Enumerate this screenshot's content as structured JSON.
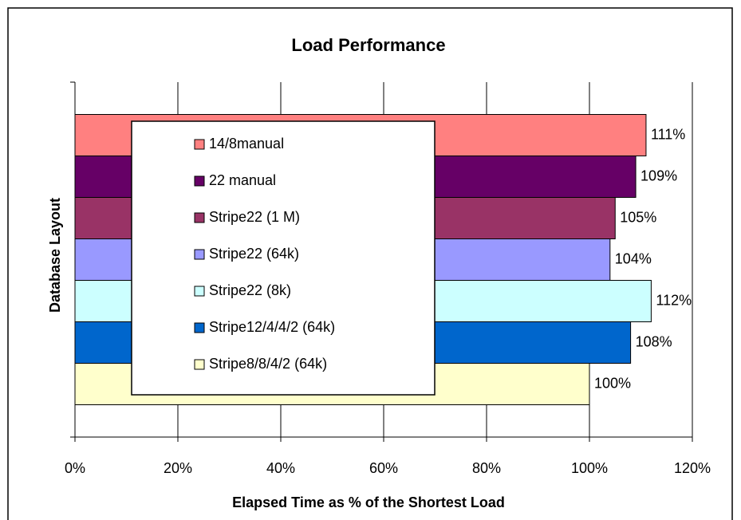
{
  "chart_data": {
    "type": "barh",
    "title": "Load Performance",
    "x_label": "Elapsed Time as % of the Shortest  Load",
    "y_label": "Database Layout",
    "categories": [
      null
    ],
    "series": [
      {
        "name": "14/8manual",
        "color": "#ff8080",
        "values": [
          111
        ],
        "value_labels": [
          "111%"
        ]
      },
      {
        "name": "22 manual",
        "color": "#660066",
        "values": [
          109
        ],
        "value_labels": [
          "109%"
        ]
      },
      {
        "name": "Stripe22 (1 M)",
        "color": "#993366",
        "values": [
          105
        ],
        "value_labels": [
          "105%"
        ]
      },
      {
        "name": "Stripe22 (64k)",
        "color": "#9999ff",
        "values": [
          104
        ],
        "value_labels": [
          "104%"
        ]
      },
      {
        "name": "Stripe22 (8k)",
        "color": "#ccffff",
        "values": [
          112
        ],
        "value_labels": [
          "112%"
        ]
      },
      {
        "name": "Stripe12/4/4/2 (64k)",
        "color": "#0066cc",
        "values": [
          108
        ],
        "value_labels": [
          "108%"
        ]
      },
      {
        "name": "Stripe8/8/4/2 (64k)",
        "color": "#ffffcc",
        "values": [
          100
        ],
        "value_labels": [
          "100%"
        ]
      }
    ],
    "xlim": [
      0,
      120
    ],
    "xticks": [
      {
        "value": 0,
        "label": "0%"
      },
      {
        "value": 20,
        "label": "20%"
      },
      {
        "value": 40,
        "label": "40%"
      },
      {
        "value": 60,
        "label": "60%"
      },
      {
        "value": 80,
        "label": "80%"
      },
      {
        "value": 100,
        "label": "100%"
      },
      {
        "value": 120,
        "label": "120%"
      }
    ],
    "grid": true
  }
}
